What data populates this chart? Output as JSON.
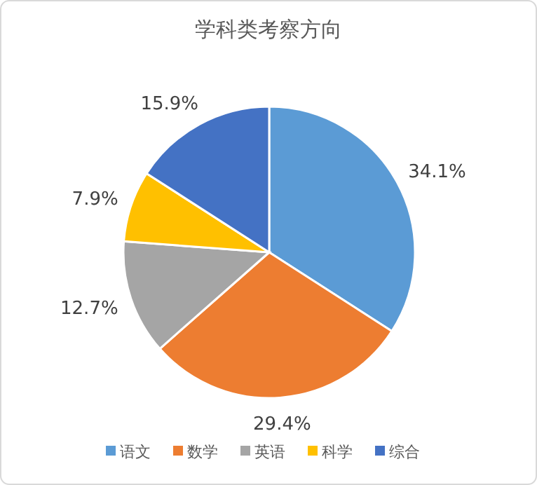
{
  "chart_data": {
    "type": "pie",
    "title": "学科类考察方向",
    "categories": [
      "语文",
      "数学",
      "英语",
      "科学",
      "综合"
    ],
    "values": [
      34.1,
      29.4,
      12.7,
      7.9,
      15.9
    ],
    "value_labels": [
      "34.1%",
      "29.4%",
      "12.7%",
      "7.9%",
      "15.9%"
    ],
    "colors": [
      "#5b9bd5",
      "#ed7d31",
      "#a5a5a5",
      "#ffc000",
      "#4472c4"
    ],
    "legend": "bottom"
  }
}
